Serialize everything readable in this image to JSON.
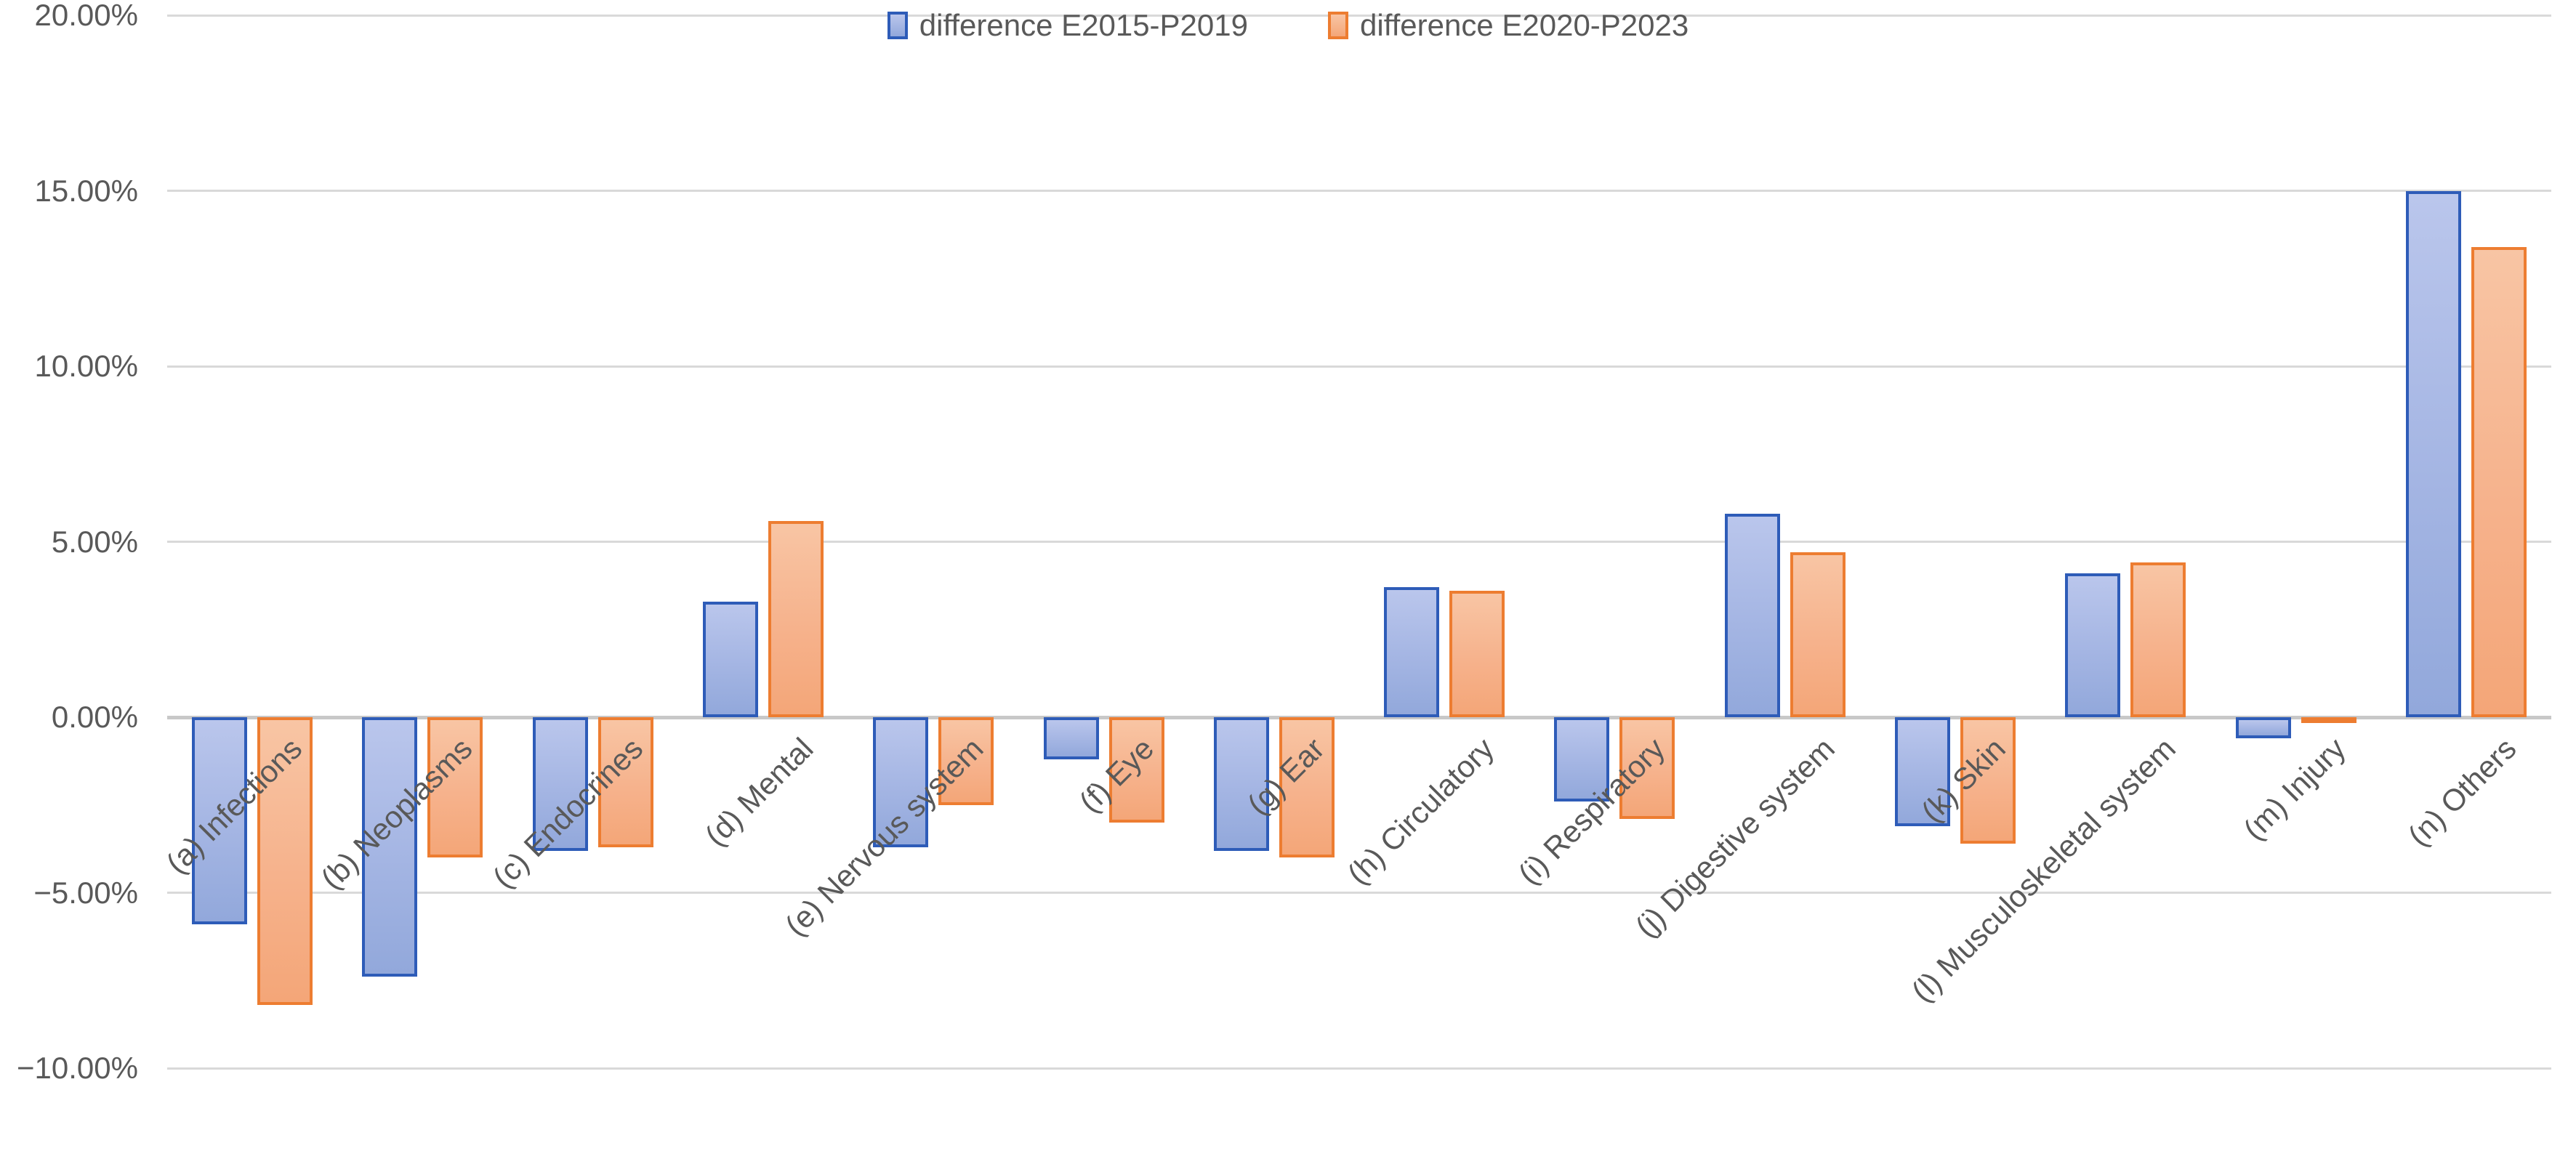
{
  "chart_data": {
    "type": "bar",
    "title": "",
    "xlabel": "",
    "ylabel": "",
    "grid": true,
    "legend_position": "bottom",
    "categories": [
      "(a) Infections",
      "(b) Neoplasms",
      "(c) Endocrines",
      "(d) Mental",
      "(e) Nervous system",
      "(f) Eye",
      "(g) Ear",
      "(h) Circulatory",
      "(i) Respiratory",
      "(j) Digestive system",
      "(k) Skin",
      "(l) Musculoskeletal system",
      "(m) Injury",
      "(n) Others"
    ],
    "series": [
      {
        "name": "difference E2015-P2019",
        "color_fill": "#a4b5e3",
        "color_border": "#2e5cb8",
        "values": [
          -5.9,
          -7.4,
          -3.8,
          3.3,
          -3.7,
          -1.2,
          -3.8,
          3.7,
          -2.4,
          5.8,
          -3.1,
          4.1,
          -0.6,
          15.0
        ]
      },
      {
        "name": "difference E2020-P2023",
        "color_fill": "#f6b28c",
        "color_border": "#ed7d31",
        "values": [
          -8.2,
          -4.0,
          -3.7,
          5.6,
          -2.5,
          -3.0,
          -4.0,
          3.6,
          -2.9,
          4.7,
          -3.6,
          4.4,
          -0.1,
          13.4
        ]
      }
    ],
    "ylim": [
      -10,
      20
    ],
    "yticks": [
      20,
      15,
      10,
      5,
      0,
      -5,
      -10
    ],
    "ytick_labels": [
      "20.00%",
      "15.00%",
      "10.00%",
      "5.00%",
      "0.00%",
      "−5.00%",
      "−10.00%"
    ]
  },
  "legend": {
    "items": [
      {
        "label": "difference E2015-P2019"
      },
      {
        "label": "difference E2020-P2023"
      }
    ]
  },
  "colors": {
    "axis_text": "#595959",
    "gridline": "#d9d9d9",
    "zero_line": "#c8c8c8"
  }
}
